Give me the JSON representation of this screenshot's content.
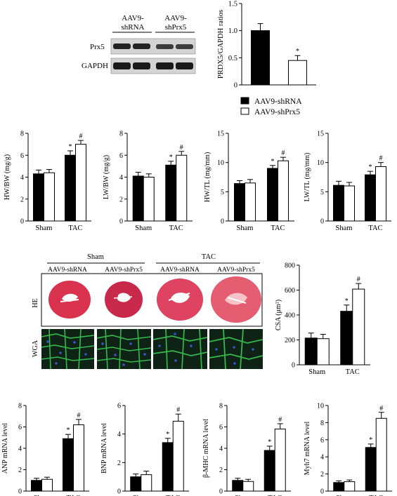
{
  "colors": {
    "bar_shrna": "#000000",
    "bar_shprx5": "#ffffff",
    "he_stain": "#d8324f",
    "wga_bg": "#0e2316",
    "wga_membrane": "#35b84c",
    "wga_nuclei": "#3555c8"
  },
  "blot": {
    "header_shrna": [
      "AAV9-",
      "shRNA"
    ],
    "header_shprx5": [
      "AAV9-",
      "shPrx5"
    ],
    "rows": [
      "Prx5",
      "GAPDH"
    ]
  },
  "histology": {
    "group_sham": "Sham",
    "group_tac": "TAC",
    "columns": [
      "AAV9-shRNA",
      "AAV9-shPrx5",
      "AAV9-shRNA",
      "AAV9-shPrx5"
    ],
    "row_he": "HE",
    "row_wga": "WGA"
  },
  "legend": {
    "items": [
      "AAV9-shRNA",
      "AAV9-shPrx5"
    ]
  },
  "chart_data": [
    {
      "id": "prdx5",
      "type": "bar",
      "categories": [
        "AAV9-shRNA",
        "AAV9-shPrx5"
      ],
      "values": [
        1.0,
        0.45
      ],
      "errors": [
        0.13,
        0.09
      ],
      "sig": [
        "",
        "*"
      ],
      "ylabel": "PRDX5/GAPDH ratios",
      "ylim": [
        0,
        1.5
      ],
      "yticks": [
        "0",
        "0.5",
        "1.0",
        "1.5"
      ],
      "ytick_values": [
        0,
        0.5,
        1.0,
        1.5
      ]
    },
    {
      "id": "hwbw",
      "type": "bar",
      "categories": [
        "Sham",
        "TAC"
      ],
      "series": [
        {
          "values": [
            4.3,
            6.0
          ],
          "errors": [
            0.35,
            0.4
          ],
          "sig": [
            "",
            "*"
          ]
        },
        {
          "values": [
            4.4,
            7.0
          ],
          "errors": [
            0.3,
            0.35
          ],
          "sig": [
            "",
            "#"
          ]
        }
      ],
      "ylabel": "HW/BW (mg/g)",
      "ylim": [
        0,
        8
      ],
      "yticks": [
        "0",
        "2",
        "4",
        "6",
        "8"
      ],
      "ytick_values": [
        0,
        2,
        4,
        6,
        8
      ]
    },
    {
      "id": "lwbw",
      "type": "bar",
      "categories": [
        "Sham",
        "TAC"
      ],
      "series": [
        {
          "values": [
            4.1,
            5.1
          ],
          "errors": [
            0.35,
            0.35
          ],
          "sig": [
            "",
            "*"
          ]
        },
        {
          "values": [
            4.0,
            6.0
          ],
          "errors": [
            0.3,
            0.35
          ],
          "sig": [
            "",
            "#"
          ]
        }
      ],
      "ylabel": "LW/BW (mg/g)",
      "ylim": [
        0,
        8
      ],
      "yticks": [
        "0",
        "2",
        "4",
        "6",
        "8"
      ],
      "ytick_values": [
        0,
        2,
        4,
        6,
        8
      ]
    },
    {
      "id": "hwtl",
      "type": "bar",
      "categories": [
        "Sham",
        "TAC"
      ],
      "series": [
        {
          "values": [
            6.4,
            9.0
          ],
          "errors": [
            0.5,
            0.5
          ],
          "sig": [
            "",
            "*"
          ]
        },
        {
          "values": [
            6.5,
            10.3
          ],
          "errors": [
            0.6,
            0.6
          ],
          "sig": [
            "",
            "#"
          ]
        }
      ],
      "ylabel": "HW/TL (mg/mm)",
      "ylim": [
        0,
        15
      ],
      "yticks": [
        "0",
        "5",
        "10",
        "15"
      ],
      "ytick_values": [
        0,
        5,
        10,
        15
      ]
    },
    {
      "id": "lwtl",
      "type": "bar",
      "categories": [
        "Sham",
        "TAC"
      ],
      "series": [
        {
          "values": [
            6.1,
            7.9
          ],
          "errors": [
            0.7,
            0.6
          ],
          "sig": [
            "",
            "*"
          ]
        },
        {
          "values": [
            6.0,
            9.3
          ],
          "errors": [
            0.6,
            0.7
          ],
          "sig": [
            "",
            "#"
          ]
        }
      ],
      "ylabel": "LW/TL (mg/mm)",
      "ylim": [
        0,
        15
      ],
      "yticks": [
        "0",
        "5",
        "10",
        "15"
      ],
      "ytick_values": [
        0,
        5,
        10,
        15
      ]
    },
    {
      "id": "csa",
      "type": "bar",
      "categories": [
        "Sham",
        "TAC"
      ],
      "series": [
        {
          "values": [
            215,
            430
          ],
          "errors": [
            40,
            50
          ],
          "sig": [
            "",
            "*"
          ]
        },
        {
          "values": [
            210,
            608
          ],
          "errors": [
            35,
            45
          ],
          "sig": [
            "",
            "#"
          ]
        }
      ],
      "ylabel": "CSA (μm²)",
      "ylim": [
        0,
        800
      ],
      "yticks": [
        "0",
        "200",
        "400",
        "600",
        "800"
      ],
      "ytick_values": [
        0,
        200,
        400,
        600,
        800
      ]
    },
    {
      "id": "anp",
      "type": "bar",
      "categories": [
        "Sham",
        "TAC"
      ],
      "series": [
        {
          "values": [
            1.0,
            4.9
          ],
          "errors": [
            0.2,
            0.4
          ],
          "sig": [
            "",
            "*"
          ]
        },
        {
          "values": [
            1.1,
            6.2
          ],
          "errors": [
            0.2,
            0.5
          ],
          "sig": [
            "",
            "#"
          ]
        }
      ],
      "ylabel": "ANP mRNA level",
      "ylim": [
        0,
        8
      ],
      "yticks": [
        "0",
        "2",
        "4",
        "6",
        "8"
      ],
      "ytick_values": [
        0,
        2,
        4,
        6,
        8
      ]
    },
    {
      "id": "bnp",
      "type": "bar",
      "categories": [
        "Sham",
        "TAC"
      ],
      "series": [
        {
          "values": [
            1.0,
            3.4
          ],
          "errors": [
            0.2,
            0.3
          ],
          "sig": [
            "",
            "*"
          ]
        },
        {
          "values": [
            1.15,
            4.9
          ],
          "errors": [
            0.25,
            0.5
          ],
          "sig": [
            "",
            "#"
          ]
        }
      ],
      "ylabel": "BNP mRNA level",
      "ylim": [
        0,
        6
      ],
      "yticks": [
        "0",
        "2",
        "4",
        "6"
      ],
      "ytick_values": [
        0,
        2,
        4,
        6
      ]
    },
    {
      "id": "bmhc",
      "type": "bar",
      "categories": [
        "Sham",
        "TAC"
      ],
      "series": [
        {
          "values": [
            1.0,
            3.8
          ],
          "errors": [
            0.2,
            0.4
          ],
          "sig": [
            "",
            "*"
          ]
        },
        {
          "values": [
            0.9,
            5.8
          ],
          "errors": [
            0.2,
            0.5
          ],
          "sig": [
            "",
            "#"
          ]
        }
      ],
      "ylabel": "β-MHC mRNA level",
      "ylim": [
        0,
        8
      ],
      "yticks": [
        "0",
        "2",
        "4",
        "6",
        "8"
      ],
      "ytick_values": [
        0,
        2,
        4,
        6,
        8
      ]
    },
    {
      "id": "myh7",
      "type": "bar",
      "categories": [
        "Sham",
        "TAC"
      ],
      "series": [
        {
          "values": [
            1.0,
            5.1
          ],
          "errors": [
            0.2,
            0.4
          ],
          "sig": [
            "",
            "*"
          ]
        },
        {
          "values": [
            1.1,
            8.5
          ],
          "errors": [
            0.2,
            0.7
          ],
          "sig": [
            "",
            "#"
          ]
        }
      ],
      "ylabel": "Myh7 mRNA level",
      "ylim": [
        0,
        10
      ],
      "yticks": [
        "0",
        "2",
        "4",
        "6",
        "8",
        "10"
      ],
      "ytick_values": [
        0,
        2,
        4,
        6,
        8,
        10
      ]
    }
  ]
}
